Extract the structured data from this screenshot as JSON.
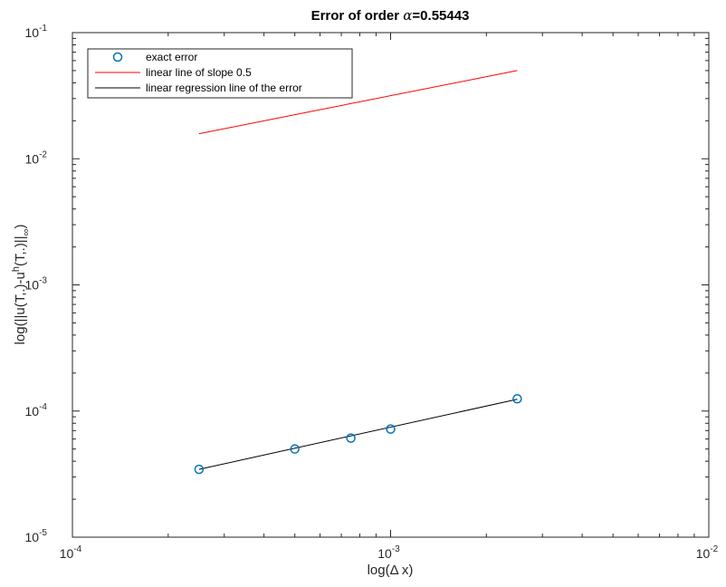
{
  "chart_data": {
    "type": "line",
    "title_prefix": "Error of order ",
    "title_symbol": "α",
    "title_value": "=0.55443",
    "xlabel": "log(Δ x)",
    "ylabel_main": "log(||u(T,.)-u",
    "ylabel_sup": "h",
    "ylabel_mid": "(T,.)||",
    "ylabel_sub": "∞",
    "ylabel_end": ")",
    "x_scale": "log",
    "y_scale": "log",
    "xlim": [
      0.0001,
      0.01
    ],
    "ylim": [
      1e-05,
      0.1
    ],
    "x_ticks": [
      {
        "value": 0.0001,
        "base": "10",
        "exp": "-4"
      },
      {
        "value": 0.001,
        "base": "10",
        "exp": "-3"
      },
      {
        "value": 0.01,
        "base": "10",
        "exp": "-2"
      }
    ],
    "y_ticks": [
      {
        "value": 1e-05,
        "base": "10",
        "exp": "-5"
      },
      {
        "value": 0.0001,
        "base": "10",
        "exp": "-4"
      },
      {
        "value": 0.001,
        "base": "10",
        "exp": "-3"
      },
      {
        "value": 0.01,
        "base": "10",
        "exp": "-2"
      },
      {
        "value": 0.1,
        "base": "10",
        "exp": "-1"
      }
    ],
    "grid": false,
    "box": true,
    "legend_position": "top-left",
    "series": [
      {
        "name": "exact error",
        "style": "markers",
        "marker": "circle",
        "color": "#0072BD",
        "x": [
          0.00025,
          0.0005,
          0.00075,
          0.001,
          0.0025
        ],
        "y": [
          3.45e-05,
          5e-05,
          6.1e-05,
          7.2e-05,
          0.000125
        ]
      },
      {
        "name": "linear line of slope 0.5",
        "style": "line",
        "color": "#FF0000",
        "x": [
          0.00025,
          0.0025
        ],
        "y": [
          0.0158,
          0.05
        ]
      },
      {
        "name": "linear regression line of the error",
        "style": "line",
        "color": "#000000",
        "x": [
          0.00025,
          0.0025
        ],
        "y": [
          3.45e-05,
          0.000124
        ]
      }
    ]
  }
}
